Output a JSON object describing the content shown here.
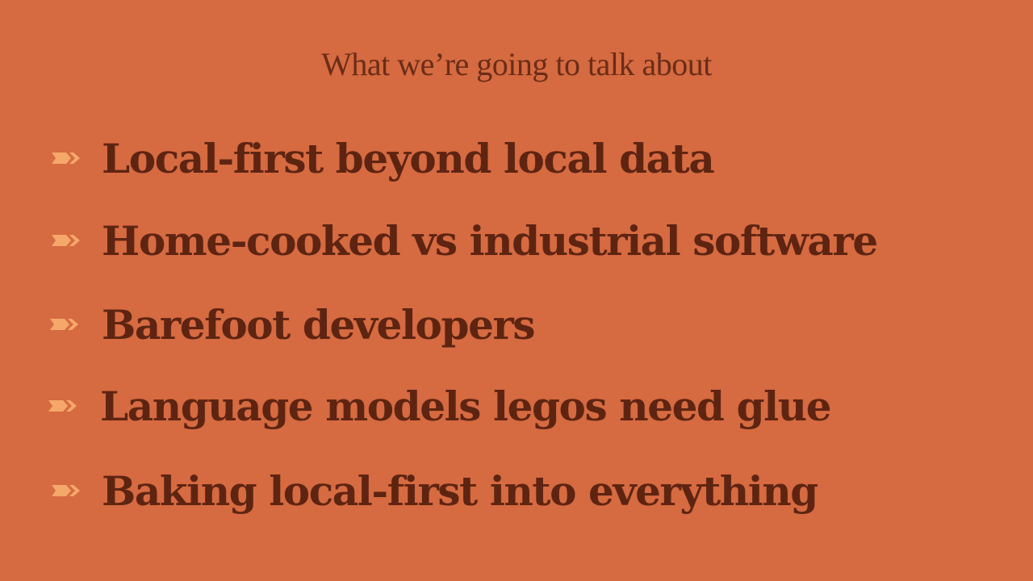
{
  "slide": {
    "title": "What we’re going to talk about",
    "bullet_icon": "double-chevron-arrow-icon",
    "bullet_color": "#f5a86a",
    "background_color": "#d66a40",
    "text_color": "#5e2412",
    "items": [
      {
        "label": "Local-first beyond local data"
      },
      {
        "label": "Home-cooked vs industrial software"
      },
      {
        "label": "Barefoot developers"
      },
      {
        "label": "Language models legos need glue"
      },
      {
        "label": "Baking local-first into everything"
      }
    ]
  }
}
